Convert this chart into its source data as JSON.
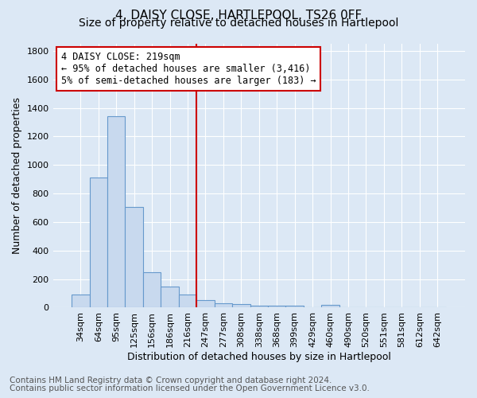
{
  "title": "4, DAISY CLOSE, HARTLEPOOL, TS26 0FF",
  "subtitle": "Size of property relative to detached houses in Hartlepool",
  "xlabel": "Distribution of detached houses by size in Hartlepool",
  "ylabel": "Number of detached properties",
  "footnote1": "Contains HM Land Registry data © Crown copyright and database right 2024.",
  "footnote2": "Contains public sector information licensed under the Open Government Licence v3.0.",
  "categories": [
    "34sqm",
    "64sqm",
    "95sqm",
    "125sqm",
    "156sqm",
    "186sqm",
    "216sqm",
    "247sqm",
    "277sqm",
    "308sqm",
    "338sqm",
    "368sqm",
    "399sqm",
    "429sqm",
    "460sqm",
    "490sqm",
    "520sqm",
    "551sqm",
    "581sqm",
    "612sqm",
    "642sqm"
  ],
  "values": [
    90,
    910,
    1340,
    705,
    250,
    145,
    90,
    55,
    30,
    25,
    15,
    15,
    15,
    0,
    20,
    0,
    0,
    0,
    0,
    0,
    0
  ],
  "bar_color": "#c8d9ee",
  "bar_edge_color": "#6699cc",
  "bar_linewidth": 0.8,
  "vline_x": 6.5,
  "vline_color": "#cc0000",
  "annotation_line1": "4 DAISY CLOSE: 219sqm",
  "annotation_line2": "← 95% of detached houses are smaller (3,416)",
  "annotation_line3": "5% of semi-detached houses are larger (183) →",
  "annotation_box_color": "#ffffff",
  "annotation_box_edge": "#cc0000",
  "ylim": [
    0,
    1850
  ],
  "yticks": [
    0,
    200,
    400,
    600,
    800,
    1000,
    1200,
    1400,
    1600,
    1800
  ],
  "bg_color": "#dce8f5",
  "plot_bg_color": "#dce8f5",
  "grid_color": "#ffffff",
  "title_fontsize": 11,
  "subtitle_fontsize": 10,
  "axis_label_fontsize": 9,
  "tick_fontsize": 8,
  "annotation_fontsize": 8.5,
  "footnote_fontsize": 7.5
}
